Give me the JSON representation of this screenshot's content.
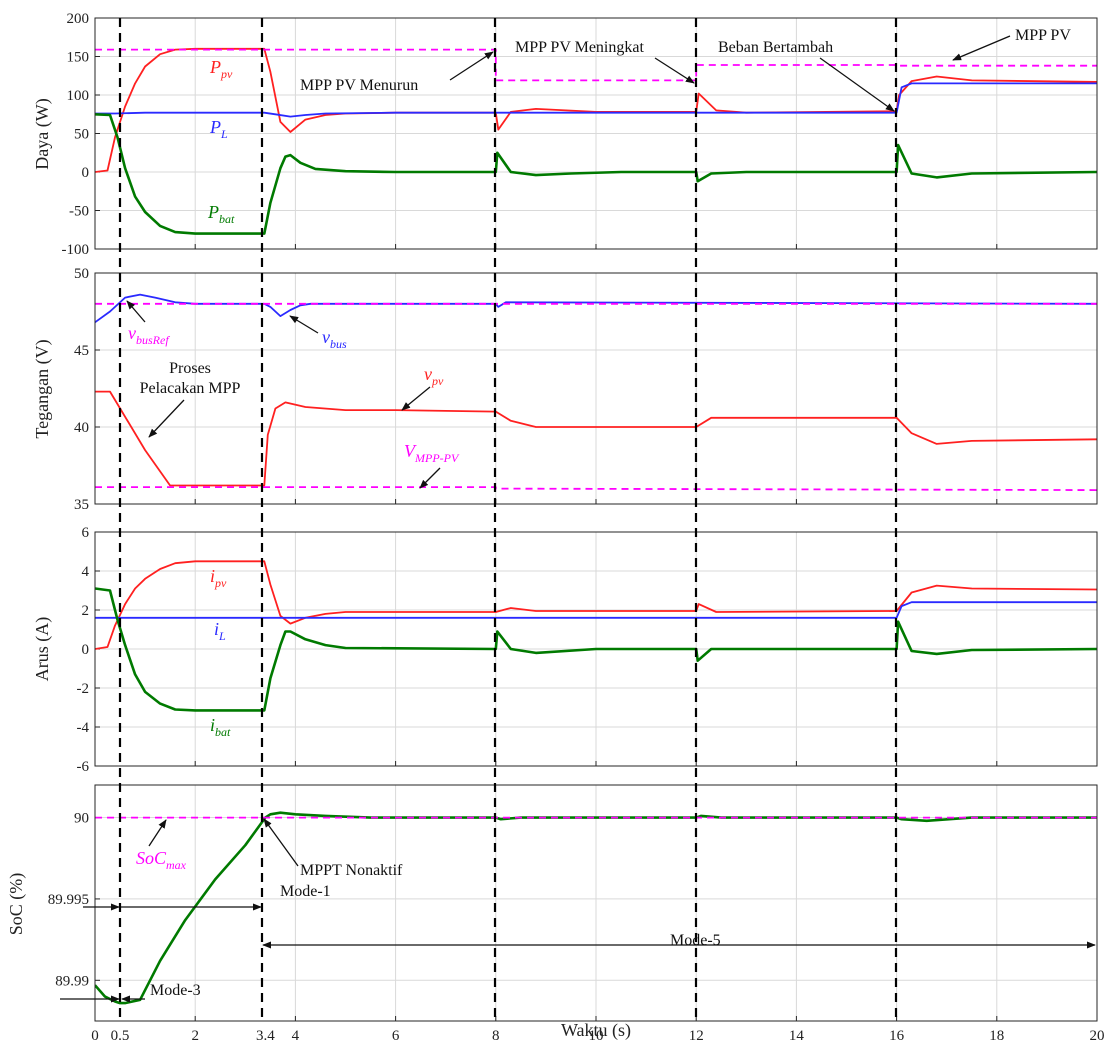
{
  "chart_data": [
    {
      "type": "line",
      "ylabel": "Daya (W)",
      "xlim": [
        0,
        20
      ],
      "ylim": [
        -100,
        200
      ],
      "yticks": [
        "200",
        "150",
        "100",
        "50",
        "0",
        "-50",
        "-100"
      ],
      "grid": true,
      "series": [
        {
          "name": "P_pv",
          "color": "#ff2020",
          "x": [
            0,
            0.25,
            0.4,
            0.6,
            0.8,
            1.0,
            1.3,
            1.6,
            2.0,
            3.38,
            3.5,
            3.7,
            3.9,
            4.2,
            4.6,
            5,
            6,
            8,
            8.05,
            8.3,
            8.8,
            10,
            12,
            12.05,
            12.4,
            13,
            16,
            16.05,
            16.3,
            16.8,
            17.5,
            20
          ],
          "y": [
            0,
            2,
            45,
            85,
            115,
            137,
            153,
            159,
            160,
            160,
            130,
            65,
            52,
            68,
            74,
            76,
            77,
            77,
            55,
            78,
            82,
            78,
            78,
            102,
            80,
            77,
            79,
            100,
            118,
            124,
            119,
            117
          ]
        },
        {
          "name": "P_L",
          "color": "#2a2aff",
          "x": [
            0,
            0.4,
            1,
            3.38,
            3.6,
            3.9,
            4.2,
            4.6,
            6,
            8,
            12,
            16,
            16.1,
            16.3,
            20
          ],
          "y": [
            76,
            76,
            77,
            77,
            75,
            72,
            74,
            76,
            77,
            77,
            77,
            77,
            110,
            115,
            115
          ]
        },
        {
          "name": "P_bat",
          "color": "#007a00",
          "x": [
            0,
            0.3,
            0.45,
            0.6,
            0.8,
            1.0,
            1.3,
            1.6,
            2.0,
            3.38,
            3.5,
            3.7,
            3.8,
            3.9,
            4.1,
            4.4,
            5,
            6,
            8,
            8.03,
            8.3,
            8.8,
            9.5,
            10.5,
            12,
            12.03,
            12.3,
            13,
            14,
            16,
            16.03,
            16.3,
            16.8,
            17.5,
            20
          ],
          "y": [
            75,
            74,
            45,
            5,
            -32,
            -52,
            -70,
            -78,
            -80,
            -80,
            -40,
            5,
            20,
            22,
            12,
            4,
            1,
            0,
            0,
            25,
            0,
            -4,
            -2,
            0,
            0,
            -12,
            -2,
            0,
            0,
            0,
            35,
            -2,
            -7,
            -2,
            0
          ]
        },
        {
          "name": "MPP PV",
          "color": "#ff00ff",
          "style": "dashed",
          "x": [
            0,
            8,
            8,
            12,
            12,
            16,
            16,
            20
          ],
          "y": [
            159,
            159,
            119,
            119,
            139,
            139,
            138,
            138
          ]
        }
      ]
    },
    {
      "type": "line",
      "ylabel": "Tegangan (V)",
      "xlim": [
        0,
        20
      ],
      "ylim": [
        35,
        50
      ],
      "yticks": [
        "50",
        "45",
        "40",
        "35"
      ],
      "grid": true,
      "series": [
        {
          "name": "v_bus",
          "color": "#2a2aff",
          "x": [
            0,
            0.3,
            0.6,
            0.9,
            1.2,
            1.6,
            2,
            3.38,
            3.5,
            3.7,
            3.9,
            4.1,
            4.3,
            6,
            8,
            8.05,
            8.2,
            20
          ],
          "y": [
            46.8,
            47.5,
            48.4,
            48.6,
            48.4,
            48.1,
            48,
            48,
            47.8,
            47.2,
            47.6,
            47.9,
            48,
            48,
            48,
            47.8,
            48.1,
            48
          ]
        },
        {
          "name": "v_busRef",
          "color": "#ff00ff",
          "style": "dashed",
          "x": [
            0,
            20
          ],
          "y": [
            48,
            48
          ]
        },
        {
          "name": "v_pv",
          "color": "#ff2020",
          "x": [
            0,
            0.3,
            1.0,
            1.5,
            1.7,
            2.2,
            3.38,
            3.45,
            3.6,
            3.8,
            4.2,
            5,
            6,
            8,
            8.3,
            8.8,
            10,
            12,
            12.3,
            13,
            16,
            16.3,
            16.8,
            17.5,
            20
          ],
          "y": [
            42.3,
            42.3,
            38.5,
            36.2,
            36.2,
            36.2,
            36.2,
            39.5,
            41.2,
            41.6,
            41.3,
            41.1,
            41.1,
            41.0,
            40.4,
            40.0,
            40.0,
            40.0,
            40.6,
            40.6,
            40.6,
            39.6,
            38.9,
            39.1,
            39.2
          ]
        },
        {
          "name": "V_MPP-PV",
          "color": "#ff00ff",
          "style": "dashed",
          "x": [
            0,
            8,
            8,
            20
          ],
          "y": [
            36.1,
            36.1,
            36.0,
            35.9
          ]
        }
      ]
    },
    {
      "type": "line",
      "ylabel": "Arus (A)",
      "xlim": [
        0,
        20
      ],
      "ylim": [
        -6,
        6
      ],
      "yticks": [
        "6",
        "4",
        "2",
        "0",
        "-2",
        "-4",
        "-6"
      ],
      "grid": true,
      "series": [
        {
          "name": "i_pv",
          "color": "#ff2020",
          "x": [
            0,
            0.25,
            0.4,
            0.6,
            0.8,
            1.0,
            1.3,
            1.6,
            2,
            3.38,
            3.5,
            3.7,
            3.9,
            4.2,
            4.6,
            5,
            6,
            8,
            8.3,
            8.8,
            12,
            12.05,
            12.4,
            16,
            16.3,
            16.8,
            17.5,
            20
          ],
          "y": [
            0,
            0.1,
            1.2,
            2.3,
            3.1,
            3.6,
            4.1,
            4.4,
            4.5,
            4.5,
            3.3,
            1.7,
            1.3,
            1.6,
            1.8,
            1.9,
            1.9,
            1.9,
            2.1,
            1.95,
            1.95,
            2.3,
            1.9,
            1.95,
            2.9,
            3.25,
            3.1,
            3.05
          ]
        },
        {
          "name": "i_L",
          "color": "#2a2aff",
          "x": [
            0,
            1,
            16,
            16.1,
            16.3,
            20
          ],
          "y": [
            1.6,
            1.6,
            1.6,
            2.2,
            2.4,
            2.4
          ]
        },
        {
          "name": "i_bat",
          "color": "#007a00",
          "x": [
            0,
            0.3,
            0.45,
            0.6,
            0.8,
            1.0,
            1.3,
            1.6,
            2,
            3.38,
            3.5,
            3.7,
            3.8,
            3.9,
            4.2,
            4.6,
            5,
            8,
            8.03,
            8.3,
            8.8,
            10,
            12,
            12.03,
            12.3,
            13,
            16,
            16.03,
            16.3,
            16.8,
            17.5,
            20
          ],
          "y": [
            3.1,
            3.0,
            1.5,
            0.2,
            -1.3,
            -2.2,
            -2.8,
            -3.1,
            -3.15,
            -3.15,
            -1.5,
            0.2,
            0.9,
            0.9,
            0.5,
            0.2,
            0.05,
            0,
            0.9,
            0,
            -0.2,
            0,
            0,
            -0.6,
            0,
            0,
            0,
            1.4,
            -0.1,
            -0.25,
            -0.05,
            0
          ]
        }
      ]
    },
    {
      "type": "line",
      "ylabel": "SoC (%)",
      "xlabel": "Waktu (s)",
      "xlim": [
        0,
        20
      ],
      "ylim": [
        89.9875,
        90.002
      ],
      "yticks": [
        "90",
        "89.995",
        "89.99"
      ],
      "xticks": [
        "0",
        "0.5",
        "2",
        "3.4",
        "4",
        "6",
        "8",
        "10",
        "12",
        "14",
        "16",
        "18",
        "20"
      ],
      "grid": true,
      "series": [
        {
          "name": "SoC",
          "color": "#007a00",
          "x": [
            0,
            0.2,
            0.4,
            0.5,
            0.6,
            0.9,
            1.3,
            1.8,
            2.4,
            3.0,
            3.4,
            3.5,
            3.7,
            4.0,
            4.6,
            5.5,
            8,
            8.1,
            8.5,
            10,
            12,
            12.1,
            12.5,
            16,
            16.1,
            16.6,
            17.5,
            20
          ],
          "y": [
            89.9897,
            89.989,
            89.9887,
            89.9886,
            89.9886,
            89.9888,
            89.9912,
            89.9937,
            89.9962,
            89.9983,
            90.0,
            90.0002,
            90.0003,
            90.0002,
            90.0001,
            90.0,
            90.0,
            89.9999,
            90.0,
            90.0,
            90.0,
            90.0001,
            90.0,
            90.0,
            89.9999,
            89.9998,
            90.0,
            90.0
          ]
        },
        {
          "name": "SoC_max",
          "color": "#ff00ff",
          "style": "dashed",
          "x": [
            0,
            20
          ],
          "y": [
            90,
            90
          ]
        }
      ]
    }
  ],
  "annotations": {
    "p1": {
      "ppv": "P",
      "ppv_sub": "pv",
      "pl": "P",
      "pl_sub": "L",
      "pbat": "P",
      "pbat_sub": "bat",
      "mpp_menurun": "MPP PV Menurun",
      "mpp_meningkat": "MPP PV Meningkat",
      "beban": "Beban Bertambah",
      "mpp_pv": "MPP PV"
    },
    "p2": {
      "vbusref": "v",
      "vbusref_sub": "busRef",
      "vbus": "v",
      "vbus_sub": "bus",
      "proses1": "Proses",
      "proses2": "Pelacakan MPP",
      "vpv": "v",
      "vpv_sub": "pv",
      "vmpp": "V",
      "vmpp_sub": "MPP-PV"
    },
    "p3": {
      "ipv": "i",
      "ipv_sub": "pv",
      "il": "i",
      "il_sub": "L",
      "ibat": "i",
      "ibat_sub": "bat"
    },
    "p4": {
      "socmax": "SoC",
      "socmax_sub": "max",
      "mppt": "MPPT Nonaktif",
      "mode1": "Mode-1",
      "mode3": "Mode-3",
      "mode5": "Mode-5"
    }
  },
  "colors": {
    "pv": "#ff2020",
    "load": "#2a2aff",
    "bat": "#007a00",
    "ref": "#ff00ff"
  }
}
